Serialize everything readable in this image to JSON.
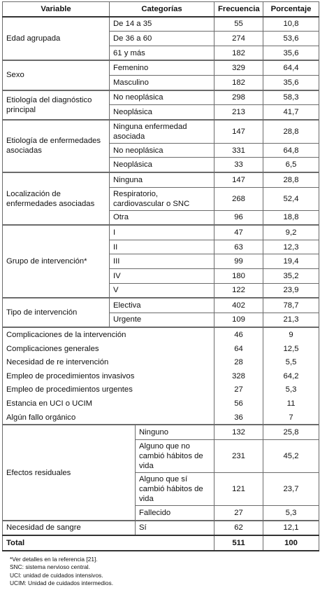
{
  "table": {
    "header": [
      "Variable",
      "Categorías",
      "Frecuencia",
      "Porcentaje"
    ],
    "sections": [
      {
        "groups": [
          {
            "variable": "Edad agrupada",
            "rows": [
              [
                "De 14 a 35",
                "55",
                "10,8"
              ],
              [
                "De 36 a 60",
                "274",
                "53,6"
              ],
              [
                "61 y más",
                "182",
                "35,6"
              ]
            ]
          },
          {
            "variable": "Sexo",
            "rows": [
              [
                "Femenino",
                "329",
                "64,4"
              ],
              [
                "Masculino",
                "182",
                "35,6"
              ]
            ]
          },
          {
            "variable": "Etiología del diagnóstico principal",
            "rows": [
              [
                "No neoplásica",
                "298",
                "58,3"
              ],
              [
                "Neoplásica",
                "213",
                "41,7"
              ]
            ]
          },
          {
            "variable": "Etiología de enfermedades asociadas",
            "rows": [
              [
                "Ninguna enfermedad asociada",
                "147",
                "28,8"
              ],
              [
                "No neoplásica",
                "331",
                "64,8"
              ],
              [
                "Neoplásica",
                "33",
                "6,5"
              ]
            ]
          },
          {
            "variable": "Localización de enfermedades asociadas",
            "rows": [
              [
                "Ninguna",
                "147",
                "28,8"
              ],
              [
                "Respiratorio, cardiovascular o SNC",
                "268",
                "52,4"
              ],
              [
                "Otra",
                "96",
                "18,8"
              ]
            ]
          },
          {
            "variable": "Grupo de intervención*",
            "rows": [
              [
                "I",
                "47",
                "9,2"
              ],
              [
                "II",
                "63",
                "12,3"
              ],
              [
                "III",
                "99",
                "19,4"
              ],
              [
                "IV",
                "180",
                "35,2"
              ],
              [
                "V",
                "122",
                "23,9"
              ]
            ]
          },
          {
            "variable": "Tipo de intervención",
            "rows": [
              [
                "Electiva",
                "402",
                "78,7"
              ],
              [
                "Urgente",
                "109",
                "21,3"
              ]
            ]
          }
        ]
      },
      {
        "rows": [
          [
            "Complicaciones de la intervención",
            "46",
            "9"
          ],
          [
            "Complicaciones generales",
            "64",
            "12,5"
          ],
          [
            "Necesidad de re intervención",
            "28",
            "5,5"
          ],
          [
            "Empleo de procedimientos invasivos",
            "328",
            "64,2"
          ],
          [
            "Empleo de procedimientos urgentes",
            "27",
            "5,3"
          ],
          [
            "Estancia en UCI o UCIM",
            "56",
            "11"
          ],
          [
            "Algún fallo orgánico",
            "36",
            "7"
          ]
        ]
      },
      {
        "groups": [
          {
            "variable": "Efectos residuales",
            "rows": [
              [
                "Ninguno",
                "132",
                "25,8"
              ],
              [
                "Alguno que no cambió hábitos de vida",
                "231",
                "45,2"
              ],
              [
                "Alguno que sí cambió hábitos de vida",
                "121",
                "23,7"
              ],
              [
                "Fallecido",
                "27",
                "5,3"
              ]
            ]
          },
          {
            "variable": "Necesidad de sangre",
            "rows": [
              [
                "Sí",
                "62",
                "12,1"
              ]
            ]
          }
        ]
      }
    ],
    "total": [
      "Total",
      "511",
      "100"
    ]
  },
  "notes": [
    "*Ver detalles en la referencia [21].",
    "SNC: sistema nervioso central.",
    "UCI: unidad de cuidados intensivos.",
    "UCIM: Unidad de cuidados intermedios."
  ]
}
